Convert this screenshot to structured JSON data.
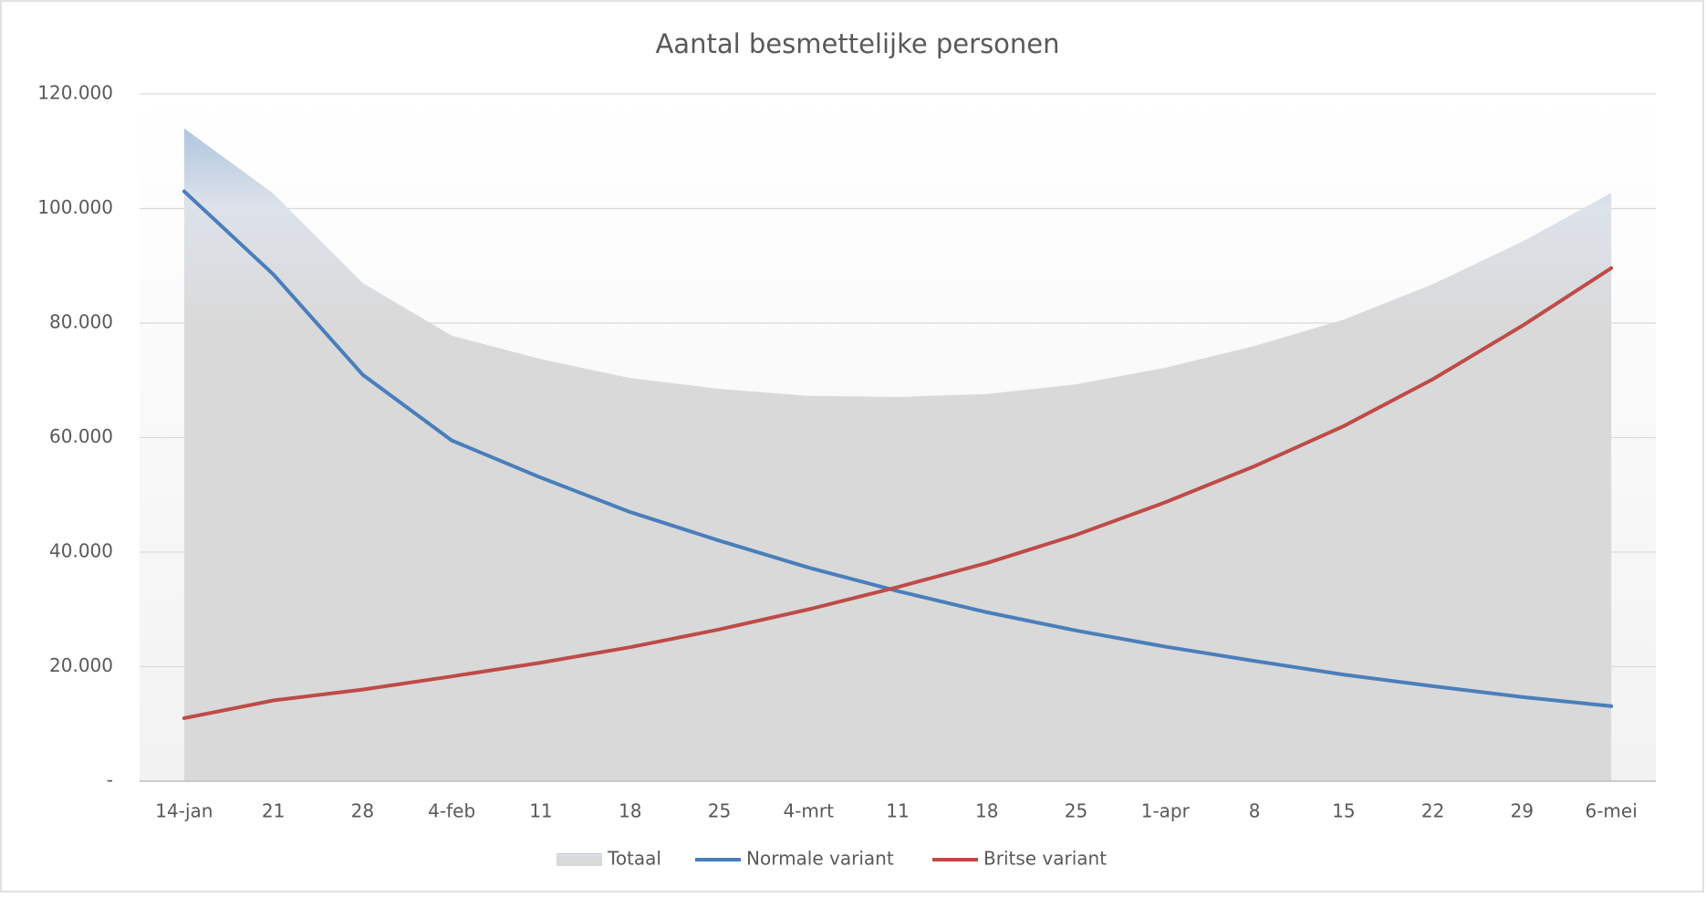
{
  "chart_data": {
    "type": "line",
    "title": "Aantal besmettelijke personen",
    "categories": [
      "14-jan",
      "21",
      "28",
      "4-feb",
      "11",
      "18",
      "25",
      "4-mrt",
      "11",
      "18",
      "25",
      "1-apr",
      "8",
      "15",
      "22",
      "29",
      "6-mei"
    ],
    "series": [
      {
        "name": "Totaal",
        "type": "area",
        "color": "#d9d9d9",
        "values": [
          114000,
          102600,
          87000,
          77800,
          73700,
          70400,
          68500,
          67300,
          67100,
          67600,
          69300,
          72200,
          76000,
          80600,
          86800,
          94200,
          102700
        ]
      },
      {
        "name": "Normale variant",
        "color": "#4a7ebb",
        "values": [
          103000,
          88500,
          71000,
          59500,
          53000,
          47000,
          42000,
          37300,
          33200,
          29500,
          26300,
          23500,
          21000,
          18600,
          16600,
          14700,
          13100
        ]
      },
      {
        "name": "Britse variant",
        "color": "#be4b48",
        "values": [
          11000,
          14100,
          16000,
          18300,
          20700,
          23400,
          26500,
          30000,
          33900,
          38100,
          43000,
          48700,
          55000,
          62000,
          70200,
          79500,
          89600
        ]
      }
    ],
    "ylim": [
      0,
      120000
    ],
    "yticks": [
      {
        "value": 0,
        "label": "-"
      },
      {
        "value": 20000,
        "label": "20.000"
      },
      {
        "value": 40000,
        "label": "40.000"
      },
      {
        "value": 60000,
        "label": "60.000"
      },
      {
        "value": 80000,
        "label": "80.000"
      },
      {
        "value": 100000,
        "label": "100.000"
      },
      {
        "value": 120000,
        "label": "120.000"
      }
    ],
    "grid": true,
    "legend": "bottom"
  }
}
